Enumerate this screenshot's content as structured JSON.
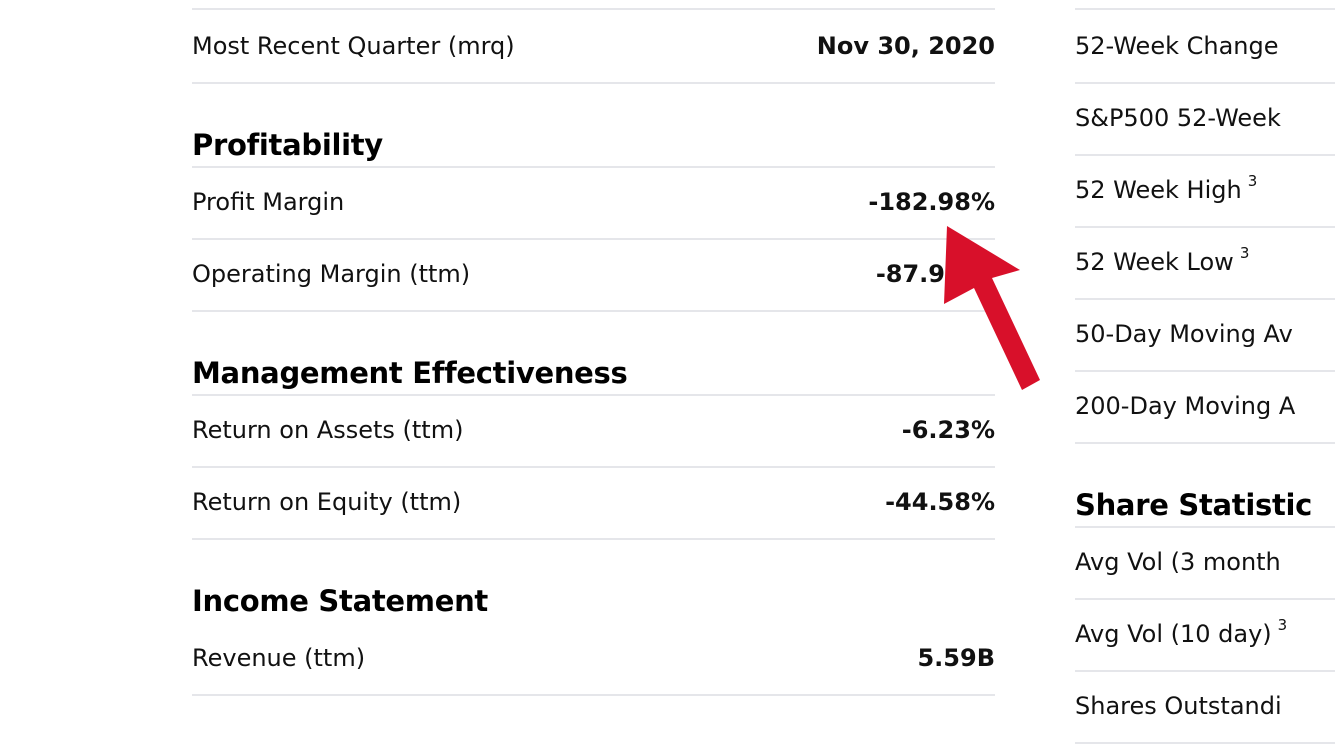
{
  "left": {
    "top_row": {
      "label": "Most Recent Quarter (mrq)",
      "value": "Nov 30, 2020"
    },
    "profitability": {
      "title": "Profitability",
      "rows": [
        {
          "label": "Profit Margin",
          "value": "-182.98%"
        },
        {
          "label": "Operating Margin (ttm)",
          "value": "-87.9"
        }
      ]
    },
    "management": {
      "title": "Management Effectiveness",
      "rows": [
        {
          "label": "Return on Assets (ttm)",
          "value": "-6.23%"
        },
        {
          "label": "Return on Equity (ttm)",
          "value": "-44.58%"
        }
      ]
    },
    "income": {
      "title": "Income Statement",
      "rows": [
        {
          "label": "Revenue (ttm)",
          "value": "5.59B"
        }
      ]
    }
  },
  "right": {
    "rows": [
      {
        "label": "52-Week Change",
        "sup": ""
      },
      {
        "label": "S&P500 52-Week",
        "sup": ""
      },
      {
        "label": "52 Week High",
        "sup": "3"
      },
      {
        "label": "52 Week Low",
        "sup": "3"
      },
      {
        "label": "50-Day Moving Av",
        "sup": ""
      },
      {
        "label": "200-Day Moving A",
        "sup": ""
      }
    ],
    "share_statistics": {
      "title": "Share Statistic",
      "rows": [
        {
          "label": "Avg Vol (3 month",
          "sup": ""
        },
        {
          "label": "Avg Vol (10 day)",
          "sup": "3"
        },
        {
          "label": "Shares Outstandi",
          "sup": ""
        }
      ]
    }
  },
  "annotation": {
    "arrow_color": "#d8102a",
    "arrow_icon": "pointer-arrow-icon"
  }
}
